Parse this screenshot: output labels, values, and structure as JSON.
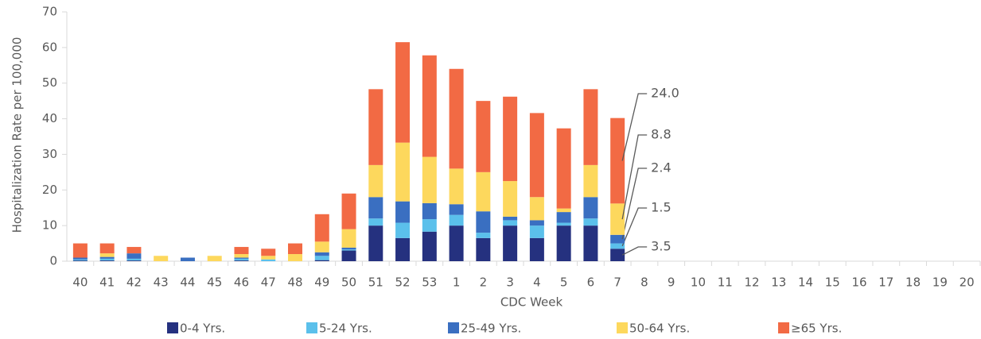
{
  "chart_data": {
    "type": "stacked-bar",
    "y_label": "Hospitalization Rate per 100,000",
    "x_label": "CDC Week",
    "categories": [
      "40",
      "41",
      "42",
      "43",
      "44",
      "45",
      "46",
      "47",
      "48",
      "49",
      "50",
      "51",
      "52",
      "53",
      "1",
      "2",
      "3",
      "4",
      "5",
      "6",
      "7",
      "8",
      "9",
      "10",
      "11",
      "12",
      "13",
      "14",
      "15",
      "16",
      "17",
      "18",
      "19",
      "20"
    ],
    "ylim": [
      0,
      70
    ],
    "yticks": [
      0,
      10,
      20,
      30,
      40,
      50,
      60,
      70
    ],
    "legend": "bottom",
    "series": [
      {
        "name": "0-4 Yrs.",
        "color": "#25317f",
        "values": [
          0.2,
          0.2,
          0.2,
          0,
          0,
          0,
          0.2,
          0,
          0,
          0.3,
          3,
          10,
          6.5,
          8.3,
          10,
          6.5,
          10,
          6.5,
          10,
          10,
          3.5,
          null,
          null,
          null,
          null,
          null,
          null,
          null,
          null,
          null,
          null,
          null,
          null,
          null
        ],
        "value_labels": [
          null,
          null,
          null,
          null,
          null,
          null,
          null,
          null,
          null,
          null,
          null,
          null,
          null,
          null,
          null,
          null,
          null,
          null,
          null,
          null,
          "3.5",
          null,
          null,
          null,
          null,
          null,
          null,
          null,
          null,
          null,
          null,
          null,
          null,
          null
        ]
      },
      {
        "name": "5-24 Yrs.",
        "color": "#5bc0eb",
        "values": [
          0.3,
          0.5,
          0.5,
          0,
          0,
          0,
          0.5,
          0.5,
          0,
          1.2,
          0.3,
          2,
          4.3,
          3.5,
          3,
          1.5,
          1.5,
          3.5,
          0.8,
          2,
          1.5,
          null,
          null,
          null,
          null,
          null,
          null,
          null,
          null,
          null,
          null,
          null,
          null,
          null
        ],
        "value_labels": [
          null,
          null,
          null,
          null,
          null,
          null,
          null,
          null,
          null,
          null,
          null,
          null,
          null,
          null,
          null,
          null,
          null,
          null,
          null,
          null,
          "1.5",
          null,
          null,
          null,
          null,
          null,
          null,
          null,
          null,
          null,
          null,
          null,
          null,
          null
        ]
      },
      {
        "name": "25-49 Yrs.",
        "color": "#3a6fc1",
        "values": [
          0.5,
          0.5,
          1.5,
          0,
          1,
          0,
          0.3,
          0,
          0,
          1,
          0.5,
          6,
          6,
          4.5,
          3,
          6,
          1,
          1.5,
          3,
          6,
          2.4,
          null,
          null,
          null,
          null,
          null,
          null,
          null,
          null,
          null,
          null,
          null,
          null,
          null
        ],
        "value_labels": [
          null,
          null,
          null,
          null,
          null,
          null,
          null,
          null,
          null,
          null,
          null,
          null,
          null,
          null,
          null,
          null,
          null,
          null,
          null,
          null,
          "2.4",
          null,
          null,
          null,
          null,
          null,
          null,
          null,
          null,
          null,
          null,
          null,
          null,
          null
        ]
      },
      {
        "name": "50-64 Yrs.",
        "color": "#fdd85d",
        "values": [
          0,
          1,
          0,
          1.5,
          0,
          1.5,
          1,
          1,
          2,
          3,
          5.2,
          9,
          16.5,
          13,
          10,
          11,
          10,
          6.5,
          1,
          9,
          8.8,
          null,
          null,
          null,
          null,
          null,
          null,
          null,
          null,
          null,
          null,
          null,
          null,
          null
        ],
        "value_labels": [
          null,
          null,
          null,
          null,
          null,
          null,
          null,
          null,
          null,
          null,
          null,
          null,
          null,
          null,
          null,
          null,
          null,
          null,
          null,
          null,
          "8.8",
          null,
          null,
          null,
          null,
          null,
          null,
          null,
          null,
          null,
          null,
          null,
          null,
          null
        ]
      },
      {
        "name": "≥65 Yrs.",
        "color": "#f26a44",
        "values": [
          4,
          2.8,
          1.8,
          0,
          0,
          0,
          2,
          2,
          3,
          7.7,
          10,
          21.3,
          28.2,
          28.5,
          28,
          20,
          23.7,
          23.6,
          22.5,
          21.3,
          24,
          null,
          null,
          null,
          null,
          null,
          null,
          null,
          null,
          null,
          null,
          null,
          null,
          null
        ],
        "value_labels": [
          null,
          null,
          null,
          null,
          null,
          null,
          null,
          null,
          null,
          null,
          null,
          null,
          null,
          null,
          null,
          null,
          null,
          null,
          null,
          null,
          "24.0",
          null,
          null,
          null,
          null,
          null,
          null,
          null,
          null,
          null,
          null,
          null,
          null,
          null
        ]
      }
    ]
  }
}
